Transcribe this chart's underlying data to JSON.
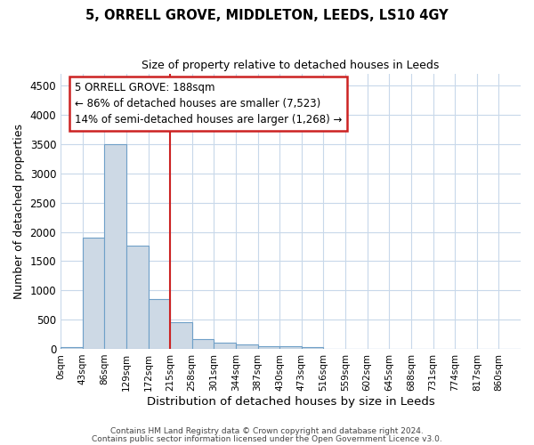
{
  "title": "5, ORRELL GROVE, MIDDLETON, LEEDS, LS10 4GY",
  "subtitle": "Size of property relative to detached houses in Leeds",
  "xlabel": "Distribution of detached houses by size in Leeds",
  "ylabel": "Number of detached properties",
  "bin_labels": [
    "0sqm",
    "43sqm",
    "86sqm",
    "129sqm",
    "172sqm",
    "215sqm",
    "258sqm",
    "301sqm",
    "344sqm",
    "387sqm",
    "430sqm",
    "473sqm",
    "516sqm",
    "559sqm",
    "602sqm",
    "645sqm",
    "688sqm",
    "731sqm",
    "774sqm",
    "817sqm",
    "860sqm"
  ],
  "bin_values": [
    30,
    1900,
    3500,
    1770,
    850,
    450,
    160,
    100,
    70,
    50,
    40,
    25,
    0,
    0,
    0,
    0,
    0,
    0,
    0,
    0,
    0
  ],
  "bar_color": "#cdd9e5",
  "bar_edge_color": "#6fa0c8",
  "marker_color": "#cc2222",
  "ylim": [
    0,
    4700
  ],
  "yticks": [
    0,
    500,
    1000,
    1500,
    2000,
    2500,
    3000,
    3500,
    4000,
    4500
  ],
  "annotation_line1": "5 ORRELL GROVE: 188sqm",
  "annotation_line2": "← 86% of detached houses are smaller (7,523)",
  "annotation_line3": "14% of semi-detached houses are larger (1,268) →",
  "annotation_box_edgecolor": "#cc2222",
  "footer1": "Contains HM Land Registry data © Crown copyright and database right 2024.",
  "footer2": "Contains public sector information licensed under the Open Government Licence v3.0.",
  "bg_color": "#ffffff",
  "grid_color": "#c8d8ea"
}
